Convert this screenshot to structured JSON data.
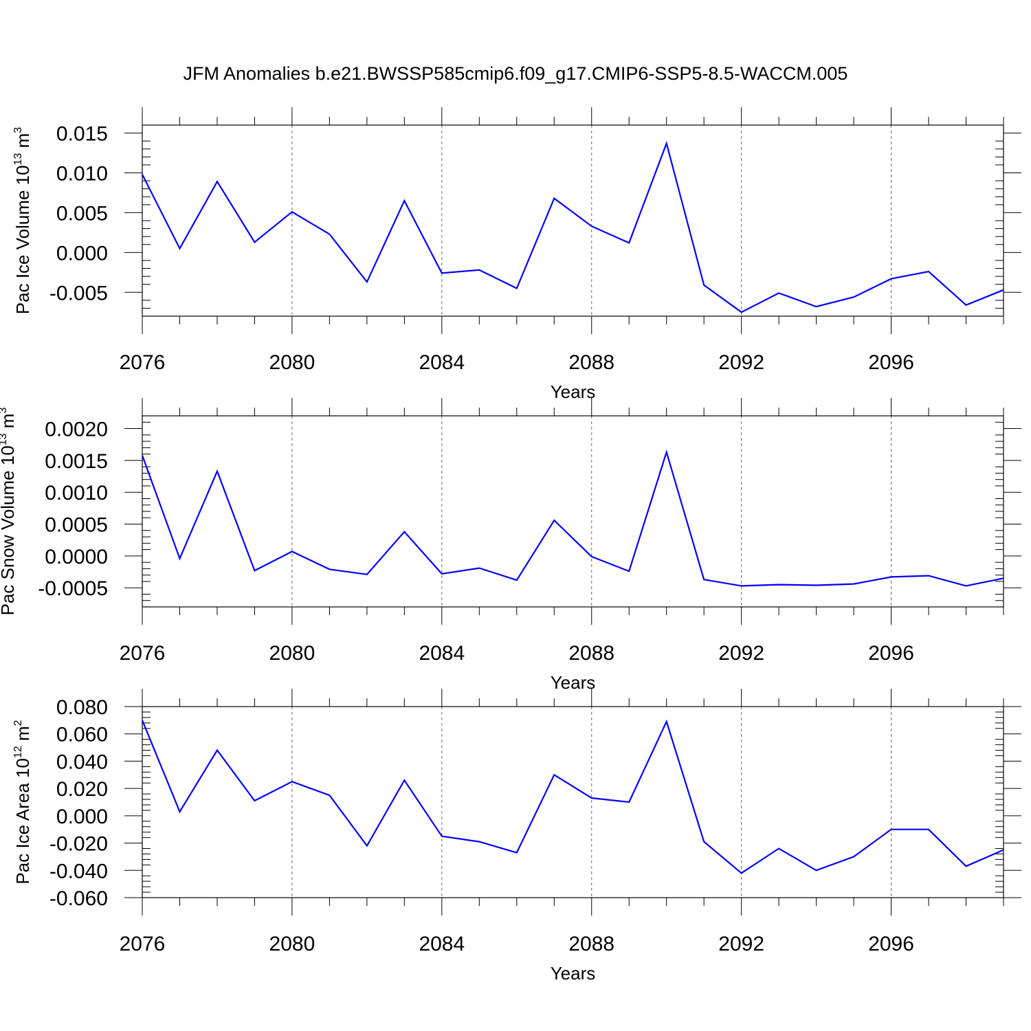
{
  "title": "JFM Anomalies b.e21.BWSSP585cmip6.f09_g17.CMIP6-SSP5-8.5-WACCM.005",
  "colors": {
    "line": "#0000ff",
    "axis": "#000000",
    "grid": "#666666"
  },
  "chart_data": [
    {
      "type": "line",
      "xlabel": "Years",
      "ylabel_main": "Pac Ice Volume 10",
      "ylabel_exp": "13",
      "ylabel_unit": "m",
      "ylabel_unit_exp": "3",
      "xlim": [
        2076,
        2099
      ],
      "ylim": [
        -0.008,
        0.016
      ],
      "xticks": [
        2076,
        2080,
        2084,
        2088,
        2092,
        2096
      ],
      "xtick_labels": [
        "2076",
        "2080",
        "2084",
        "2088",
        "2092",
        "2096"
      ],
      "yticks": [
        0.015,
        0.01,
        0.005,
        0.0,
        -0.005
      ],
      "ytick_labels": [
        "0.015",
        "0.010",
        "0.005",
        "0.000",
        "-0.005"
      ],
      "grid": "vertical-dashed",
      "x": [
        2076,
        2077,
        2078,
        2079,
        2080,
        2081,
        2082,
        2083,
        2084,
        2085,
        2086,
        2087,
        2088,
        2089,
        2090,
        2091,
        2092,
        2093,
        2094,
        2095,
        2096,
        2097,
        2098,
        2099
      ],
      "series": [
        {
          "values": [
            0.0098,
            0.0005,
            0.0089,
            0.0013,
            0.0051,
            0.0023,
            -0.0037,
            0.0065,
            -0.0026,
            -0.0022,
            -0.0045,
            0.0068,
            0.0033,
            0.0012,
            0.0137,
            -0.0041,
            -0.0075,
            -0.0051,
            -0.0068,
            -0.0056,
            -0.0033,
            -0.0024,
            -0.0066,
            -0.0047
          ]
        }
      ]
    },
    {
      "type": "line",
      "xlabel": "Years",
      "ylabel_main": "Pac Snow Volume 10",
      "ylabel_exp": "13",
      "ylabel_unit": "m",
      "ylabel_unit_exp": "3",
      "xlim": [
        2076,
        2099
      ],
      "ylim": [
        -0.0008,
        0.0022
      ],
      "xticks": [
        2076,
        2080,
        2084,
        2088,
        2092,
        2096
      ],
      "xtick_labels": [
        "2076",
        "2080",
        "2084",
        "2088",
        "2092",
        "2096"
      ],
      "yticks": [
        0.002,
        0.0015,
        0.001,
        0.0005,
        0.0,
        -0.0005
      ],
      "ytick_labels": [
        "0.0020",
        "0.0015",
        "0.0010",
        "0.0005",
        "0.0000",
        "-0.0005"
      ],
      "grid": "vertical-dashed",
      "x": [
        2076,
        2077,
        2078,
        2079,
        2080,
        2081,
        2082,
        2083,
        2084,
        2085,
        2086,
        2087,
        2088,
        2089,
        2090,
        2091,
        2092,
        2093,
        2094,
        2095,
        2096,
        2097,
        2098,
        2099
      ],
      "series": [
        {
          "values": [
            0.00158,
            -4e-05,
            0.00133,
            -0.00023,
            7e-05,
            -0.00021,
            -0.00029,
            0.00038,
            -0.00028,
            -0.00019,
            -0.00038,
            0.00056,
            -1e-05,
            -0.00024,
            0.00163,
            -0.00037,
            -0.00047,
            -0.00045,
            -0.00046,
            -0.00044,
            -0.00033,
            -0.00031,
            -0.00047,
            -0.00035
          ]
        }
      ]
    },
    {
      "type": "line",
      "xlabel": "Years",
      "ylabel_main": "Pac Ice Area 10",
      "ylabel_exp": "12",
      "ylabel_unit": "m",
      "ylabel_unit_exp": "2",
      "xlim": [
        2076,
        2099
      ],
      "ylim": [
        -0.06,
        0.08
      ],
      "xticks": [
        2076,
        2080,
        2084,
        2088,
        2092,
        2096
      ],
      "xtick_labels": [
        "2076",
        "2080",
        "2084",
        "2088",
        "2092",
        "2096"
      ],
      "yticks": [
        0.08,
        0.06,
        0.04,
        0.02,
        0.0,
        -0.02,
        -0.04,
        -0.06
      ],
      "ytick_labels": [
        "0.080",
        "0.060",
        "0.040",
        "0.020",
        "0.000",
        "-0.020",
        "-0.040",
        "-0.060"
      ],
      "grid": "vertical-dashed",
      "x": [
        2076,
        2077,
        2078,
        2079,
        2080,
        2081,
        2082,
        2083,
        2084,
        2085,
        2086,
        2087,
        2088,
        2089,
        2090,
        2091,
        2092,
        2093,
        2094,
        2095,
        2096,
        2097,
        2098,
        2099
      ],
      "series": [
        {
          "values": [
            0.07,
            0.003,
            0.048,
            0.011,
            0.025,
            0.015,
            -0.022,
            0.026,
            -0.015,
            -0.019,
            -0.027,
            0.03,
            0.013,
            0.01,
            0.069,
            -0.019,
            -0.042,
            -0.024,
            -0.04,
            -0.03,
            -0.01,
            -0.01,
            -0.037,
            -0.025
          ]
        }
      ]
    }
  ]
}
